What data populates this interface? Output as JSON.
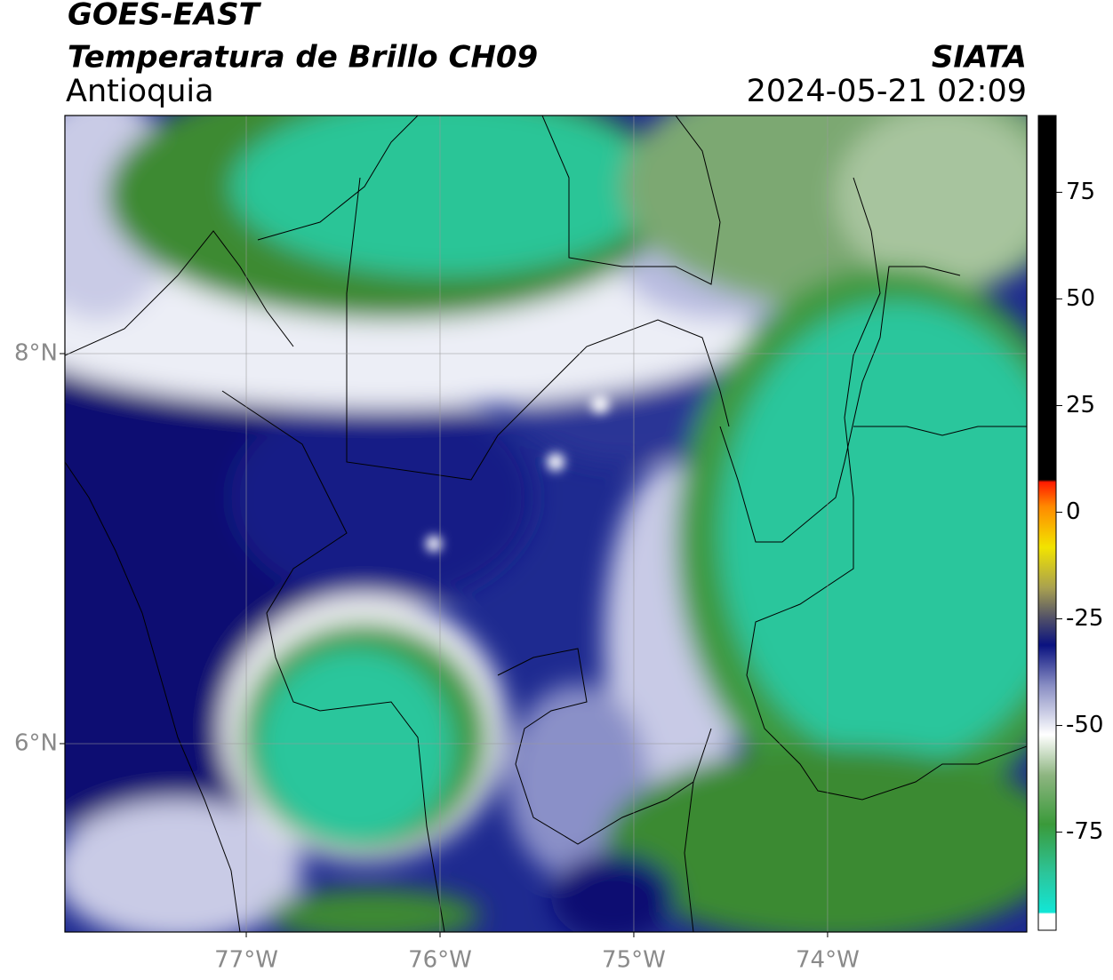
{
  "header": {
    "title": "GOES-EAST",
    "subtitle": "Temperatura de Brillo CH09",
    "region": "Antioquia",
    "source": "SIATA",
    "datetime": "2024-05-21 02:09"
  },
  "map": {
    "lonlim": [
      -77.936,
      -72.972
    ],
    "latlim": [
      5.034,
      9.221
    ],
    "lon_ticks": [
      {
        "value": -77,
        "label": "77°W"
      },
      {
        "value": -76,
        "label": "76°W"
      },
      {
        "value": -75,
        "label": "75°W"
      },
      {
        "value": -74,
        "label": "74°W"
      }
    ],
    "lat_ticks": [
      {
        "value": 8,
        "label": "8°N"
      },
      {
        "value": 6,
        "label": "6°N"
      }
    ]
  },
  "colorbar": {
    "lim": [
      -98,
      93
    ],
    "ticks": [
      -75,
      -50,
      -25,
      0,
      25,
      50,
      75
    ]
  }
}
